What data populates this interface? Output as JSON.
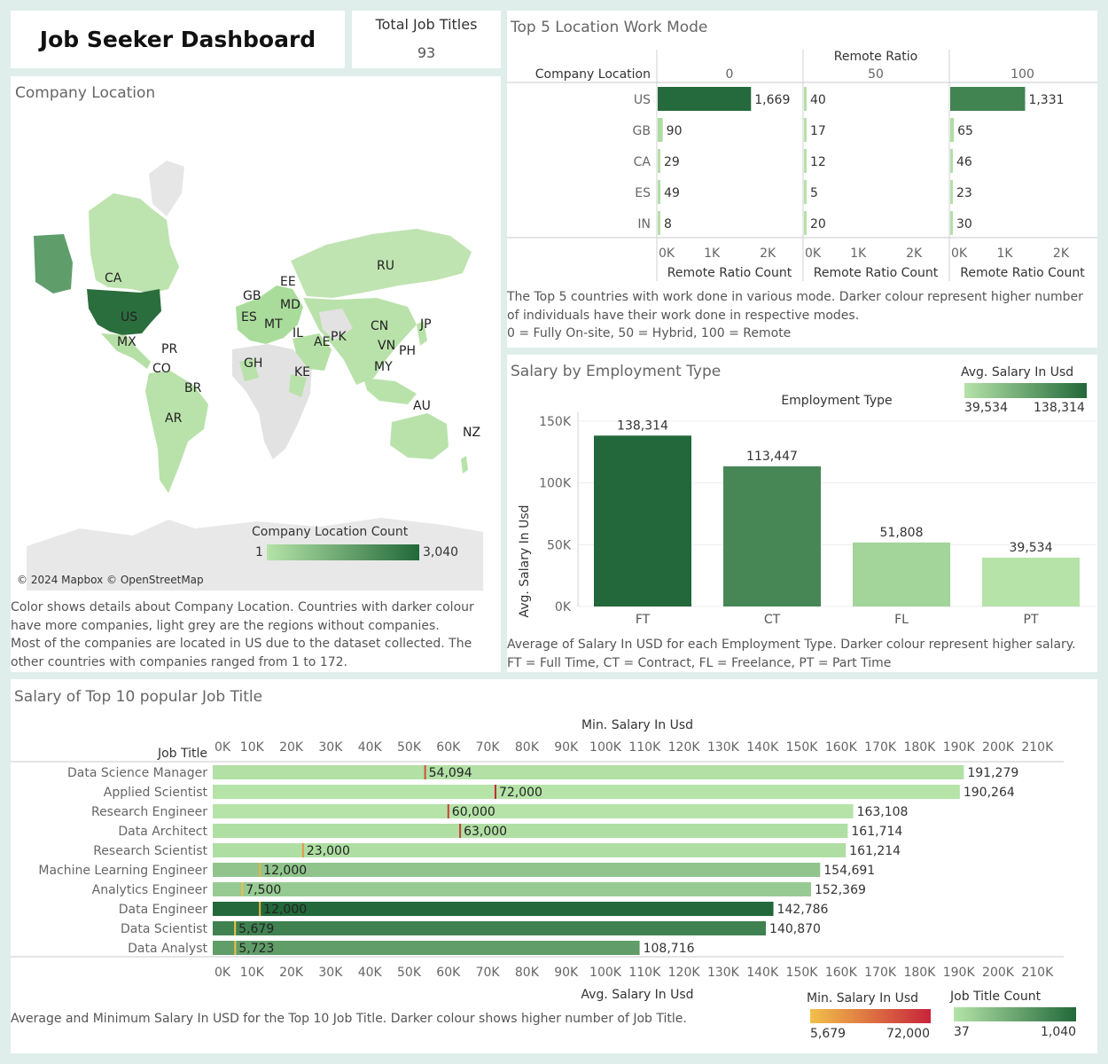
{
  "header": {
    "title": "Job Seeker Dashboard",
    "kpi_label": "Total Job Titles",
    "kpi_value": "93"
  },
  "colors": {
    "green_light": "#b5e3a8",
    "green_dark": "#22683a",
    "min_light": "#f2c04a",
    "min_dark": "#c8243a",
    "map_gray": "#e6e6e6"
  },
  "map_panel": {
    "title": "Company Location",
    "attribution": "© 2024 Mapbox © OpenStreetMap",
    "legend_title": "Company Location Count",
    "legend_min": "1",
    "legend_max": "3,040",
    "country_labels": [
      "CA",
      "US",
      "MX",
      "PR",
      "CO",
      "BR",
      "AR",
      "GB",
      "ES",
      "EE",
      "MD",
      "MT",
      "IL",
      "AE",
      "PK",
      "GH",
      "KE",
      "RU",
      "CN",
      "VN",
      "PH",
      "MY",
      "JP",
      "AU",
      "NZ"
    ],
    "note_lines": [
      "Color shows details about Company Location. Countries with darker colour",
      "have more companies, light grey are the regions without companies.",
      "Most of the companies are located in US due to the dataset collected. The",
      "other countries with companies ranged from 1 to 172."
    ]
  },
  "chart_data": [
    {
      "type": "bar",
      "title": "Top 5 Location Work Mode",
      "row_header": "Company Location",
      "column_header": "Remote Ratio",
      "xlabel": "Remote Ratio Count",
      "categories": [
        "US",
        "GB",
        "CA",
        "ES",
        "IN"
      ],
      "series": [
        {
          "name": "0",
          "values": [
            1669,
            90,
            29,
            49,
            8
          ]
        },
        {
          "name": "50",
          "values": [
            40,
            17,
            12,
            5,
            20
          ]
        },
        {
          "name": "100",
          "values": [
            1331,
            65,
            46,
            23,
            30
          ]
        }
      ],
      "value_labels": {
        "0": [
          "1,669",
          "90",
          "29",
          "49",
          "8"
        ],
        "50": [
          "40",
          "17",
          "12",
          "5",
          "20"
        ],
        "100": [
          "1,331",
          "65",
          "46",
          "23",
          "30"
        ]
      },
      "xlim": [
        0,
        2600
      ],
      "xticks": [
        "0K",
        "1K",
        "2K"
      ],
      "note_lines": [
        "The Top 5 countries with work done in various mode. Darker colour represent higher number",
        "of individuals have their work done in respective modes.",
        "0 = Fully On-site, 50 = Hybrid, 100 = Remote"
      ]
    },
    {
      "type": "bar",
      "title": "Salary by Employment Type",
      "column_header": "Employment Type",
      "ylabel": "Avg. Salary In Usd",
      "categories": [
        "FT",
        "CT",
        "FL",
        "PT"
      ],
      "values": [
        138314,
        113447,
        51808,
        39534
      ],
      "value_labels": [
        "138,314",
        "113,447",
        "51,808",
        "39,534"
      ],
      "ylim": [
        0,
        150000
      ],
      "yticks": [
        "0K",
        "50K",
        "100K",
        "150K"
      ],
      "legend_title": "Avg. Salary In Usd",
      "legend_min": "39,534",
      "legend_max": "138,314",
      "note_lines": [
        "Average of Salary In USD for each Employment Type. Darker colour represent higher salary.",
        "FT = Full Time, CT = Contract, FL = Freelance, PT = Part Time"
      ]
    },
    {
      "type": "bar",
      "title": "Salary of Top 10 popular Job Title",
      "row_header": "Job Title",
      "top_axis_label": "Min. Salary In Usd",
      "bottom_axis_label": "Avg. Salary In Usd",
      "xlim": [
        0,
        213000
      ],
      "xticks": [
        "0K",
        "10K",
        "20K",
        "30K",
        "40K",
        "50K",
        "60K",
        "70K",
        "80K",
        "90K",
        "100K",
        "110K",
        "120K",
        "130K",
        "140K",
        "150K",
        "160K",
        "170K",
        "180K",
        "190K",
        "200K",
        "210K"
      ],
      "categories": [
        "Data Science Manager",
        "Applied Scientist",
        "Research Engineer",
        "Data Architect",
        "Research Scientist",
        "Machine Learning Engineer",
        "Analytics Engineer",
        "Data Engineer",
        "Data Scientist",
        "Data Analyst"
      ],
      "avg_salary": [
        191279,
        190264,
        163108,
        161714,
        161214,
        154691,
        152369,
        142786,
        140870,
        108716
      ],
      "avg_labels": [
        "191,279",
        "190,264",
        "163,108",
        "161,714",
        "161,214",
        "154,691",
        "152,369",
        "142,786",
        "140,870",
        "108,716"
      ],
      "min_salary": [
        54094,
        72000,
        60000,
        63000,
        23000,
        12000,
        7500,
        12000,
        5679,
        5723
      ],
      "min_labels": [
        "54,094",
        "72,000",
        "60,000",
        "63,000",
        "23,000",
        "12,000",
        "7,500",
        "12,000",
        "5,679",
        "5,723"
      ],
      "job_title_count": [
        60,
        40,
        40,
        70,
        80,
        290,
        240,
        1040,
        840,
        610
      ],
      "legend_min_title": "Min. Salary In Usd",
      "legend_min_low": "5,679",
      "legend_min_high": "72,000",
      "legend_count_title": "Job Title Count",
      "legend_count_low": "37",
      "legend_count_high": "1,040",
      "note": "Average and Minimum Salary In USD for the Top 10 Job Title. Darker colour shows higher number of Job Title."
    }
  ]
}
